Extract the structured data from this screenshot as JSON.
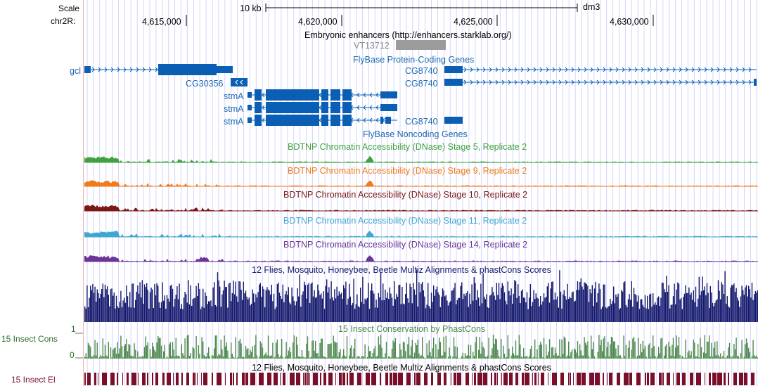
{
  "ruler": {
    "scale_label": "Scale",
    "chrom_label": "chr2R:",
    "scale_bar_text": "10 kb",
    "assembly": "dm3",
    "positions": [
      "4,615,000",
      "4,620,000",
      "4,625,000",
      "4,630,000"
    ]
  },
  "tracks": {
    "enhancers": {
      "title": "Embryonic enhancers (http://enhancers.starklab.org/)",
      "item": "VT13712"
    },
    "protein_coding": {
      "title": "FlyBase Protein-Coding Genes",
      "genes": [
        "gcl",
        "CG30356",
        "stmA",
        "stmA",
        "stmA",
        "CG8740",
        "CG8740",
        "CG8740"
      ]
    },
    "noncoding": {
      "title": "FlyBase Noncoding Genes"
    },
    "dnase": [
      {
        "title": "BDTNP Chromatin Accessibility (DNase) Stage 5, Replicate 2",
        "color": "#3ea33e"
      },
      {
        "title": "BDTNP Chromatin Accessibility (DNase) Stage 9, Replicate 2",
        "color": "#f07a1c"
      },
      {
        "title": "BDTNP Chromatin Accessibility (DNase) Stage 10, Replicate 2",
        "color": "#7d1616"
      },
      {
        "title": "BDTNP Chromatin Accessibility (DNase) Stage 11, Replicate 2",
        "color": "#40a8d0"
      },
      {
        "title": "BDTNP Chromatin Accessibility (DNase) Stage 14, Replicate 2",
        "color": "#6a3596"
      }
    ],
    "multiz": {
      "title": "12 Flies, Mosquito, Honeybee, Beetle Multiz Alignments & phastCons Scores",
      "color": "#14196e"
    },
    "phastcons": {
      "title": "15 Insect Conservation by PhastCons",
      "left_label": "15 Insect Cons",
      "y_max": "1",
      "y_min": "0",
      "color": "#4f8a4f"
    },
    "elements": {
      "title": "12 Flies, Mosquito, Honeybee, Beetle Multiz Alignments & phastCons Scores",
      "left_label": "15 Insect El",
      "color": "#7a0f2a"
    }
  },
  "colors": {
    "gene": "#0a5fb4",
    "grid": "#d4d4ff",
    "label_blue": "#1f6ab0"
  }
}
